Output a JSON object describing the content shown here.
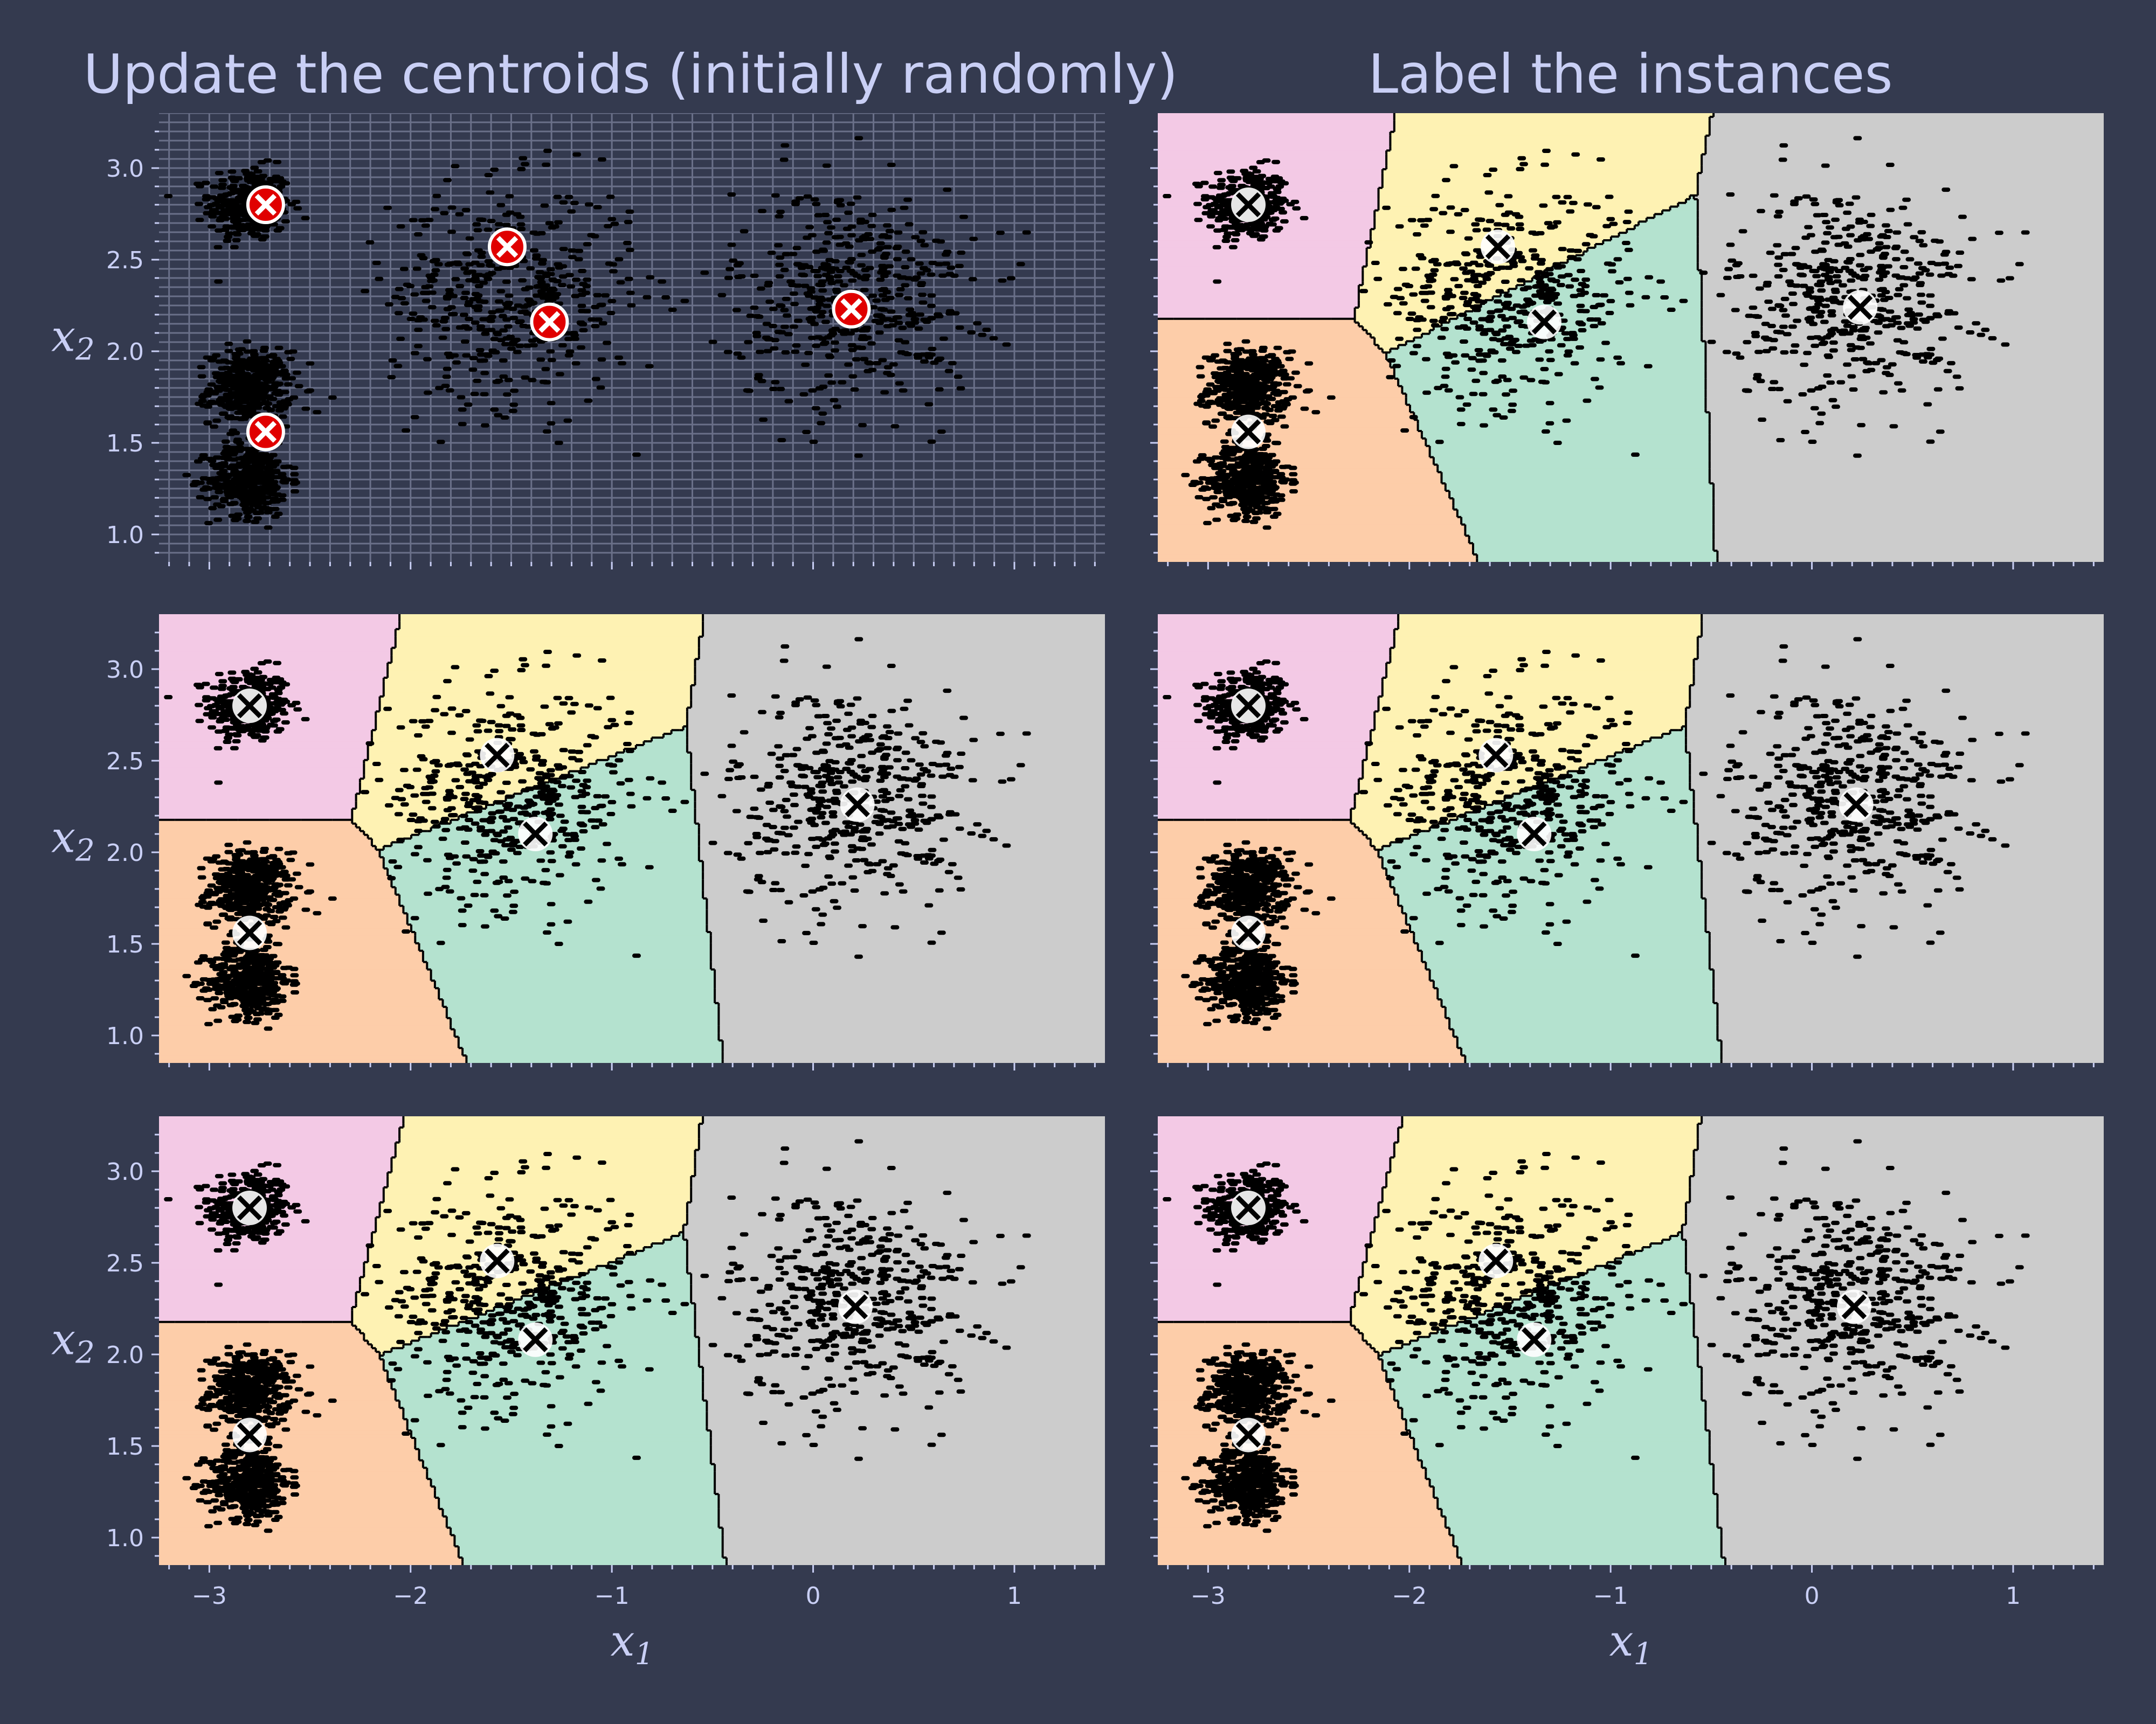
{
  "figure": {
    "titles": [
      "Update the centroids (initially randomly)",
      "Label the instances"
    ],
    "xlabel": "x",
    "xlabel_sub": "1",
    "ylabel": "x",
    "ylabel_sub": "2",
    "colors": {
      "background": "#343a4f",
      "text": "#c9cff5",
      "region_pink": "#f3c9e5",
      "region_orange": "#fdcda9",
      "region_yellow": "#fef2b3",
      "region_green": "#b4e2cf",
      "region_gray": "#cccccc",
      "points": "#000000",
      "initial_centroid": "#e00000"
    }
  },
  "chart_data": [
    {
      "type": "scatter",
      "panel": "row1-left",
      "title": "Update the centroids (initially randomly)",
      "shows_regions": false,
      "grid": true,
      "xlim": [
        -3.25,
        1.45
      ],
      "ylim": [
        0.85,
        3.3
      ],
      "xticks": [
        -3,
        -2,
        -1,
        0,
        1
      ],
      "xtick_labels": [
        "",
        "",
        "",
        "",
        ""
      ],
      "yticks": [
        1.0,
        1.5,
        2.0,
        2.5,
        3.0
      ],
      "ytick_labels": [
        "1.0",
        "1.5",
        "2.0",
        "2.5",
        "3.0"
      ],
      "xlabel": "",
      "ylabel": "x2",
      "centroids": [
        {
          "x": -2.72,
          "y": 2.8
        },
        {
          "x": -2.72,
          "y": 1.56
        },
        {
          "x": -1.52,
          "y": 2.57
        },
        {
          "x": -1.31,
          "y": 2.16
        },
        {
          "x": 0.19,
          "y": 2.23
        }
      ],
      "centroid_style": "red-circle-white-x"
    },
    {
      "type": "scatter",
      "panel": "row1-right",
      "title": "Label the instances",
      "shows_regions": true,
      "grid": false,
      "xlim": [
        -3.25,
        1.45
      ],
      "ylim": [
        0.85,
        3.3
      ],
      "xticks": [
        -3,
        -2,
        -1,
        0,
        1
      ],
      "xtick_labels": [
        "",
        "",
        "",
        "",
        ""
      ],
      "yticks": [
        1.0,
        1.5,
        2.0,
        2.5,
        3.0
      ],
      "ytick_labels": [
        "",
        "",
        "",
        "",
        ""
      ],
      "xlabel": "",
      "ylabel": "",
      "centroids": [
        {
          "x": -2.8,
          "y": 2.8
        },
        {
          "x": -2.8,
          "y": 1.56
        },
        {
          "x": -1.56,
          "y": 2.57
        },
        {
          "x": -1.33,
          "y": 2.16
        },
        {
          "x": 0.24,
          "y": 2.24
        }
      ],
      "centroid_style": "white-circle-black-x",
      "region_fills": [
        "region_pink",
        "region_orange",
        "region_yellow",
        "region_green",
        "region_gray"
      ]
    },
    {
      "type": "scatter",
      "panel": "row2-left",
      "title": "",
      "shows_regions": true,
      "grid": false,
      "xlim": [
        -3.25,
        1.45
      ],
      "ylim": [
        0.85,
        3.3
      ],
      "xticks": [
        -3,
        -2,
        -1,
        0,
        1
      ],
      "xtick_labels": [
        "",
        "",
        "",
        "",
        ""
      ],
      "yticks": [
        1.0,
        1.5,
        2.0,
        2.5,
        3.0
      ],
      "ytick_labels": [
        "1.0",
        "1.5",
        "2.0",
        "2.5",
        "3.0"
      ],
      "xlabel": "",
      "ylabel": "x2",
      "centroids": [
        {
          "x": -2.8,
          "y": 2.8
        },
        {
          "x": -2.8,
          "y": 1.56
        },
        {
          "x": -1.57,
          "y": 2.53
        },
        {
          "x": -1.38,
          "y": 2.1
        },
        {
          "x": 0.22,
          "y": 2.26
        }
      ],
      "centroid_style": "white-circle-black-x",
      "region_fills": [
        "region_pink",
        "region_orange",
        "region_yellow",
        "region_green",
        "region_gray"
      ]
    },
    {
      "type": "scatter",
      "panel": "row2-right",
      "title": "",
      "shows_regions": true,
      "grid": false,
      "xlim": [
        -3.25,
        1.45
      ],
      "ylim": [
        0.85,
        3.3
      ],
      "xticks": [
        -3,
        -2,
        -1,
        0,
        1
      ],
      "xtick_labels": [
        "",
        "",
        "",
        "",
        ""
      ],
      "yticks": [
        1.0,
        1.5,
        2.0,
        2.5,
        3.0
      ],
      "ytick_labels": [
        "",
        "",
        "",
        "",
        ""
      ],
      "xlabel": "",
      "ylabel": "",
      "centroids": [
        {
          "x": -2.8,
          "y": 2.8
        },
        {
          "x": -2.8,
          "y": 1.56
        },
        {
          "x": -1.57,
          "y": 2.53
        },
        {
          "x": -1.38,
          "y": 2.1
        },
        {
          "x": 0.22,
          "y": 2.26
        }
      ],
      "centroid_style": "white-circle-black-x",
      "region_fills": [
        "region_pink",
        "region_orange",
        "region_yellow",
        "region_green",
        "region_gray"
      ]
    },
    {
      "type": "scatter",
      "panel": "row3-left",
      "title": "",
      "shows_regions": true,
      "grid": false,
      "xlim": [
        -3.25,
        1.45
      ],
      "ylim": [
        0.85,
        3.3
      ],
      "xticks": [
        -3,
        -2,
        -1,
        0,
        1
      ],
      "xtick_labels": [
        "−3",
        "−2",
        "−1",
        "0",
        "1"
      ],
      "yticks": [
        1.0,
        1.5,
        2.0,
        2.5,
        3.0
      ],
      "ytick_labels": [
        "1.0",
        "1.5",
        "2.0",
        "2.5",
        "3.0"
      ],
      "xlabel": "x1",
      "ylabel": "x2",
      "centroids": [
        {
          "x": -2.8,
          "y": 2.8
        },
        {
          "x": -2.8,
          "y": 1.56
        },
        {
          "x": -1.57,
          "y": 2.51
        },
        {
          "x": -1.38,
          "y": 2.08
        },
        {
          "x": 0.21,
          "y": 2.26
        }
      ],
      "centroid_style": "white-circle-black-x",
      "region_fills": [
        "region_pink",
        "region_orange",
        "region_yellow",
        "region_green",
        "region_gray"
      ]
    },
    {
      "type": "scatter",
      "panel": "row3-right",
      "title": "",
      "shows_regions": true,
      "grid": false,
      "xlim": [
        -3.25,
        1.45
      ],
      "ylim": [
        0.85,
        3.3
      ],
      "xticks": [
        -3,
        -2,
        -1,
        0,
        1
      ],
      "xtick_labels": [
        "−3",
        "−2",
        "−1",
        "0",
        "1"
      ],
      "yticks": [
        1.0,
        1.5,
        2.0,
        2.5,
        3.0
      ],
      "ytick_labels": [
        "",
        "",
        "",
        "",
        ""
      ],
      "xlabel": "x1",
      "ylabel": "",
      "centroids": [
        {
          "x": -2.8,
          "y": 2.8
        },
        {
          "x": -2.8,
          "y": 1.56
        },
        {
          "x": -1.57,
          "y": 2.51
        },
        {
          "x": -1.38,
          "y": 2.08
        },
        {
          "x": 0.21,
          "y": 2.26
        }
      ],
      "centroid_style": "white-circle-black-x",
      "region_fills": [
        "region_pink",
        "region_orange",
        "region_yellow",
        "region_green",
        "region_gray"
      ]
    }
  ]
}
